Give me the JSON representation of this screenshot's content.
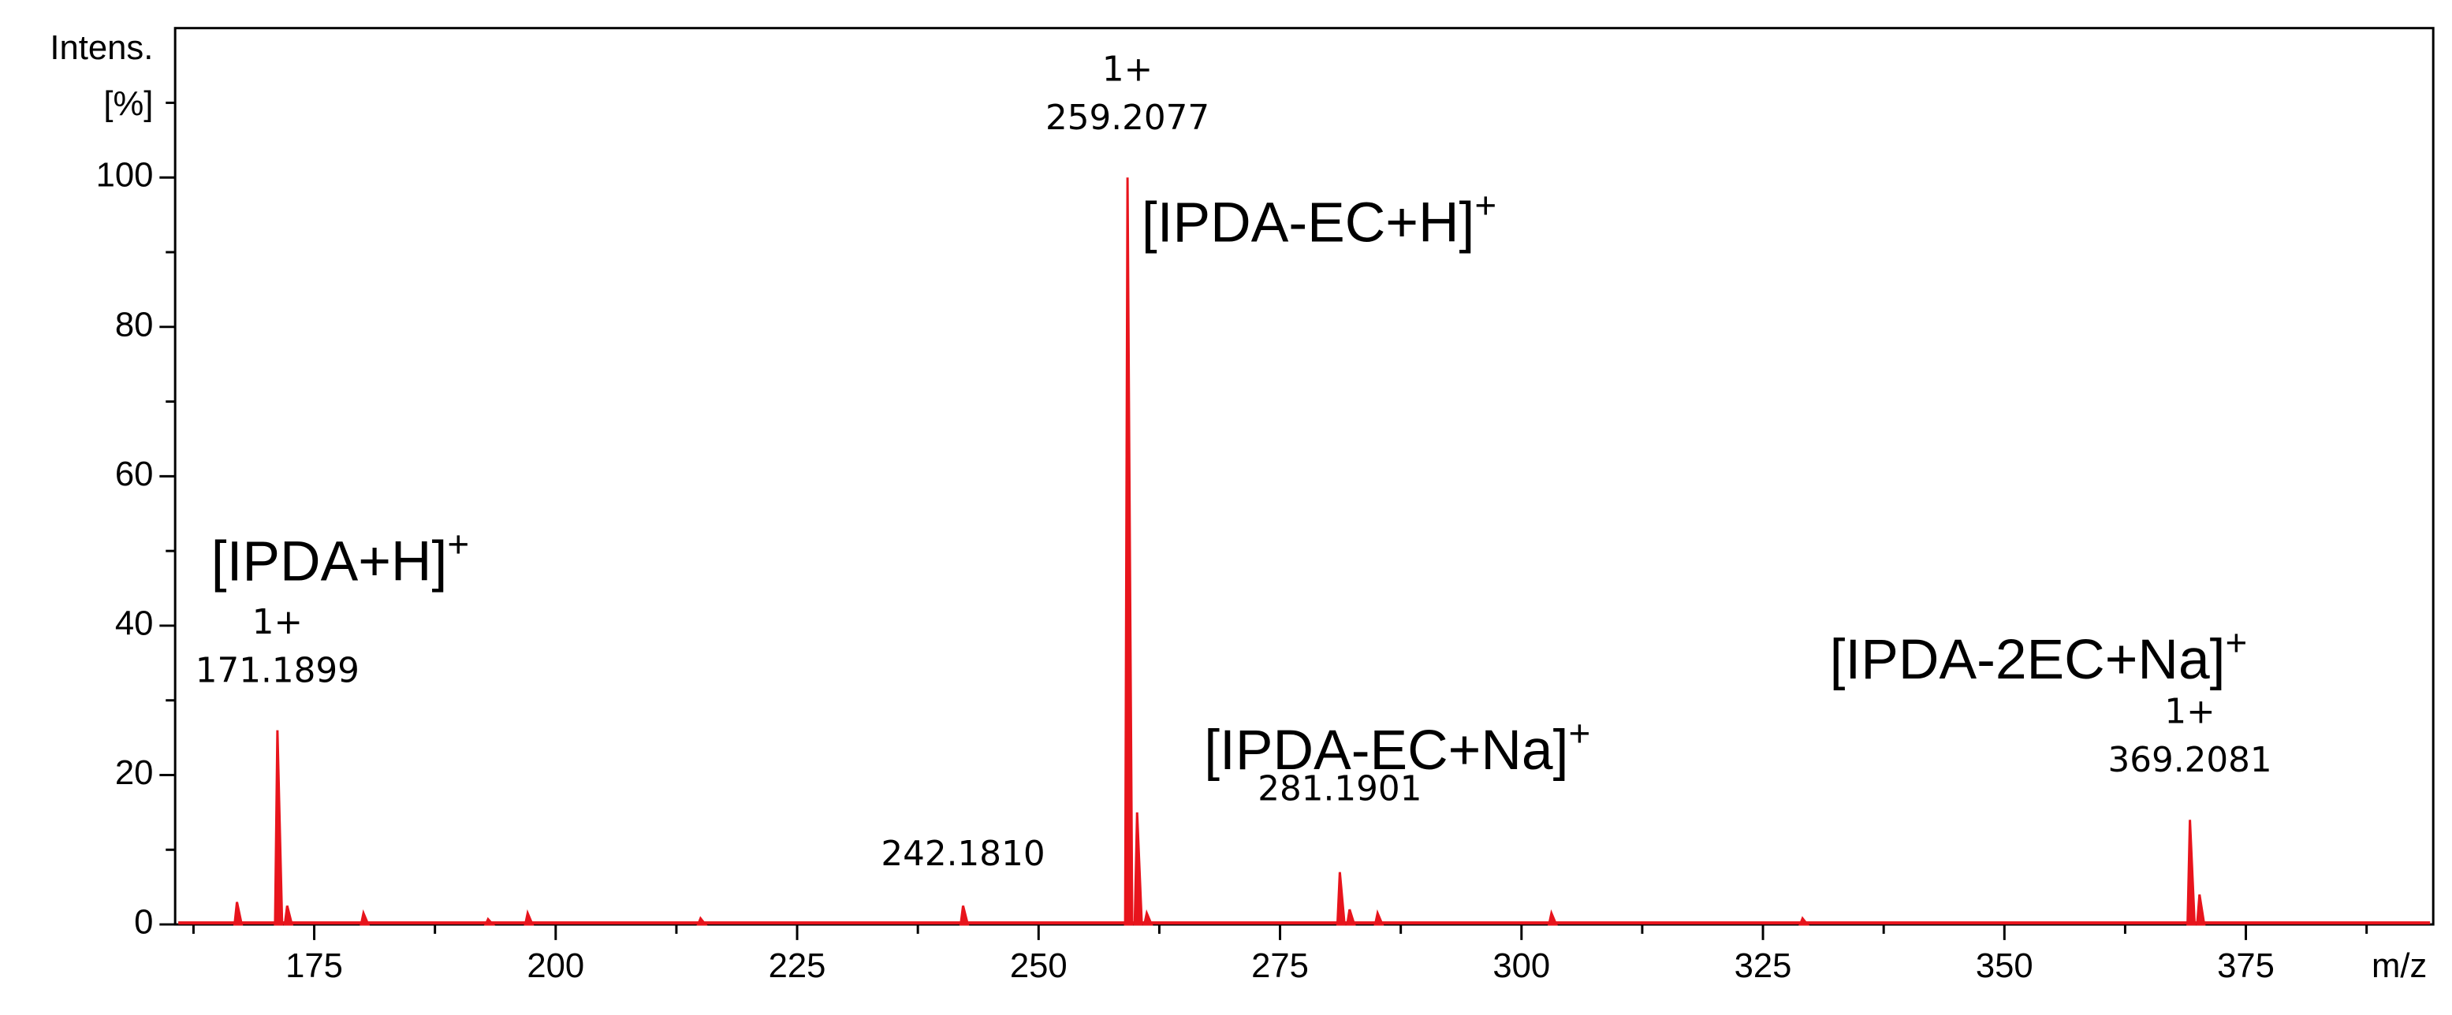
{
  "chart_data": {
    "type": "spectrum",
    "y_label": "Intens.",
    "y_unit": "[%]",
    "x_label": "m/z",
    "color": "#e8141c",
    "xlim": [
      160.6,
      394.4
    ],
    "ylim": [
      0,
      120
    ],
    "xticks": [
      175,
      200,
      225,
      250,
      275,
      300,
      325,
      350,
      375
    ],
    "x_minor_ticks": [
      162.5,
      187.5,
      212.5,
      237.5,
      262.5,
      287.5,
      312.5,
      337.5,
      362.5,
      387.5
    ],
    "yticks": [
      0,
      20,
      40,
      60,
      80,
      100
    ],
    "y_minor_ticks": [
      10,
      30,
      50,
      70,
      90,
      110
    ],
    "x": [
      167.0,
      171.1899,
      172.2,
      180.1,
      193.0,
      197.1,
      215.0,
      242.181,
      259.2077,
      260.2,
      261.2,
      281.1901,
      282.2,
      285.1,
      303.1,
      329.1,
      369.2081,
      370.2
    ],
    "values": [
      3,
      26,
      2.5,
      1.5,
      0.7,
      1.5,
      0.8,
      2.5,
      100,
      15,
      1.5,
      7,
      2,
      1.5,
      1.5,
      0.8,
      14,
      4
    ],
    "annotations": [
      {
        "x": 171.1899,
        "charge": "1+",
        "label": "171.1899",
        "ion": "[IPDA+H]",
        "ion_charge": "+"
      },
      {
        "x": 242.181,
        "label": "242.1810"
      },
      {
        "x": 259.2077,
        "charge": "1+",
        "label": "259.2077",
        "ion": "[IPDA-EC+H]",
        "ion_charge": "+"
      },
      {
        "x": 281.1901,
        "label": "281.1901",
        "ion": "[IPDA-EC+Na]",
        "ion_charge": "+"
      },
      {
        "x": 369.2081,
        "charge": "1+",
        "label": "369.2081",
        "ion": "[IPDA-2EC+Na]",
        "ion_charge": "+"
      }
    ]
  }
}
